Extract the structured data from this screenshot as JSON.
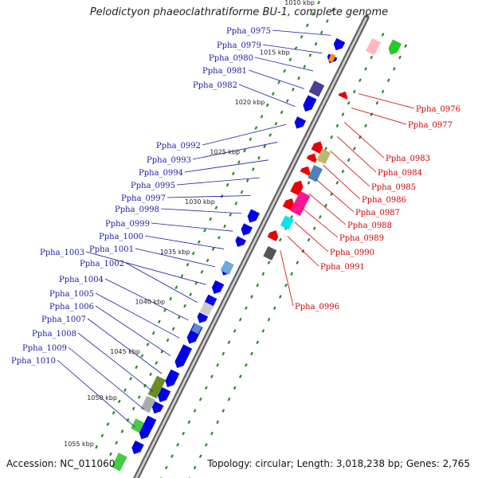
{
  "title": "Pelodictyon phaeoclathratiforme BU-1, complete genome",
  "accession": "Accession: NC_011060",
  "summary": "Topology: circular; Length: 3,018,238 bp; Genes: 2,765",
  "colors": {
    "backbone": "#8c8c8c",
    "cds_forward": "#0000ee",
    "cds_reverse": "#ee0000",
    "label_forward": "#1a1aa6",
    "label_reverse": "#cc0000",
    "tick": "#228b22"
  },
  "ticks": [
    {
      "label": "1010 kbp"
    },
    {
      "label": "1015 kbp"
    },
    {
      "label": "1020 kbp"
    },
    {
      "label": "1025 kbp"
    },
    {
      "label": "1030 kbp"
    },
    {
      "label": "1035 kbp"
    },
    {
      "label": "1040 kbp"
    },
    {
      "label": "1045 kbp"
    },
    {
      "label": "1050 kbp"
    },
    {
      "label": "1055 kbp"
    }
  ],
  "labels_forward": [
    "Ppha_0975",
    "Ppha_0979",
    "Ppha_0980",
    "Ppha_0981",
    "Ppha_0982",
    "Ppha_0992",
    "Ppha_0993",
    "Ppha_0994",
    "Ppha_0995",
    "Ppha_0997",
    "Ppha_0998",
    "Ppha_0999",
    "Ppha_1000",
    "Ppha_1001",
    "Ppha_1003",
    "Ppha_1002",
    "Ppha_1004",
    "Ppha_1005",
    "Ppha_1006",
    "Ppha_1007",
    "Ppha_1008",
    "Ppha_1009",
    "Ppha_1010"
  ],
  "labels_reverse": [
    "Ppha_0976",
    "Ppha_0977",
    "Ppha_0983",
    "Ppha_0984",
    "Ppha_0985",
    "Ppha_0986",
    "Ppha_0987",
    "Ppha_0988",
    "Ppha_0989",
    "Ppha_0990",
    "Ppha_0991",
    "Ppha_0996"
  ]
}
